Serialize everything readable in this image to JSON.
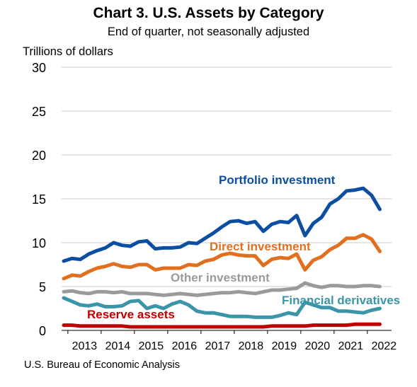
{
  "chart_data": {
    "type": "line",
    "title": "Chart 3. U.S. Assets by Category",
    "subtitle": "End of quarter, not seasonally adjusted",
    "ylabel": "Trillions of dollars",
    "xlabel": "",
    "ylim": [
      0,
      30
    ],
    "yticks": [
      "0",
      "5",
      "10",
      "15",
      "20",
      "25",
      "30"
    ],
    "year_labels": [
      "2013",
      "2014",
      "2015",
      "2016",
      "2017",
      "2018",
      "2019",
      "2020",
      "2021",
      "2022"
    ],
    "x": [
      "2012-Q4",
      "2013-Q1",
      "2013-Q2",
      "2013-Q3",
      "2013-Q4",
      "2014-Q1",
      "2014-Q2",
      "2014-Q3",
      "2014-Q4",
      "2015-Q1",
      "2015-Q2",
      "2015-Q3",
      "2015-Q4",
      "2016-Q1",
      "2016-Q2",
      "2016-Q3",
      "2016-Q4",
      "2017-Q1",
      "2017-Q2",
      "2017-Q3",
      "2017-Q4",
      "2018-Q1",
      "2018-Q2",
      "2018-Q3",
      "2018-Q4",
      "2019-Q1",
      "2019-Q2",
      "2019-Q3",
      "2019-Q4",
      "2020-Q1",
      "2020-Q2",
      "2020-Q3",
      "2020-Q4",
      "2021-Q1",
      "2021-Q2",
      "2021-Q3",
      "2021-Q4",
      "2022-Q1",
      "2022-Q2"
    ],
    "grid": true,
    "series": [
      {
        "name": "Portfolio investment",
        "color": "#0b4ea2",
        "values": [
          7.9,
          8.2,
          8.1,
          8.7,
          9.1,
          9.4,
          10.0,
          9.7,
          9.6,
          10.1,
          10.2,
          9.3,
          9.4,
          9.4,
          9.5,
          10.0,
          9.9,
          10.5,
          11.1,
          11.8,
          12.4,
          12.5,
          12.2,
          12.4,
          11.3,
          12.1,
          12.4,
          12.3,
          13.1,
          10.8,
          12.2,
          12.9,
          14.4,
          15.0,
          15.9,
          16.0,
          16.2,
          15.4,
          13.8
        ]
      },
      {
        "name": "Direct investment",
        "color": "#e0701f",
        "values": [
          5.9,
          6.3,
          6.2,
          6.7,
          7.1,
          7.3,
          7.6,
          7.3,
          7.2,
          7.5,
          7.5,
          6.9,
          7.1,
          7.1,
          7.1,
          7.5,
          7.4,
          7.9,
          8.1,
          8.6,
          8.8,
          8.6,
          8.5,
          8.5,
          7.4,
          8.1,
          8.3,
          8.2,
          8.7,
          6.9,
          8.0,
          8.4,
          9.2,
          9.7,
          10.5,
          10.5,
          10.9,
          10.4,
          9.0
        ]
      },
      {
        "name": "Other investment",
        "color": "#9a9a9a",
        "values": [
          4.4,
          4.5,
          4.3,
          4.2,
          4.4,
          4.4,
          4.3,
          4.4,
          4.2,
          4.2,
          4.2,
          4.1,
          4.0,
          4.1,
          4.2,
          4.1,
          4.0,
          4.1,
          4.2,
          4.3,
          4.3,
          4.4,
          4.3,
          4.2,
          4.4,
          4.6,
          4.6,
          4.7,
          4.8,
          5.4,
          5.1,
          4.9,
          5.1,
          5.1,
          5.0,
          5.0,
          5.1,
          5.1,
          5.0
        ]
      },
      {
        "name": "Financial derivatives",
        "color": "#3b94a8",
        "values": [
          3.7,
          3.3,
          2.9,
          2.8,
          3.0,
          2.7,
          2.7,
          2.8,
          3.3,
          3.4,
          2.5,
          2.8,
          2.5,
          3.0,
          3.3,
          2.9,
          2.2,
          2.0,
          2.0,
          1.8,
          1.6,
          1.6,
          1.6,
          1.5,
          1.5,
          1.5,
          1.7,
          2.0,
          1.8,
          3.2,
          2.9,
          2.6,
          2.6,
          2.2,
          2.2,
          2.1,
          2.0,
          2.3,
          2.5
        ]
      },
      {
        "name": "Reserve assets",
        "color": "#c00000",
        "values": [
          0.6,
          0.6,
          0.5,
          0.5,
          0.5,
          0.5,
          0.5,
          0.5,
          0.4,
          0.4,
          0.4,
          0.4,
          0.4,
          0.4,
          0.4,
          0.4,
          0.4,
          0.4,
          0.4,
          0.4,
          0.4,
          0.4,
          0.4,
          0.4,
          0.4,
          0.5,
          0.5,
          0.5,
          0.5,
          0.5,
          0.6,
          0.6,
          0.6,
          0.6,
          0.6,
          0.7,
          0.7,
          0.7,
          0.7
        ]
      }
    ]
  },
  "source": "U.S. Bureau of Economic Analysis"
}
